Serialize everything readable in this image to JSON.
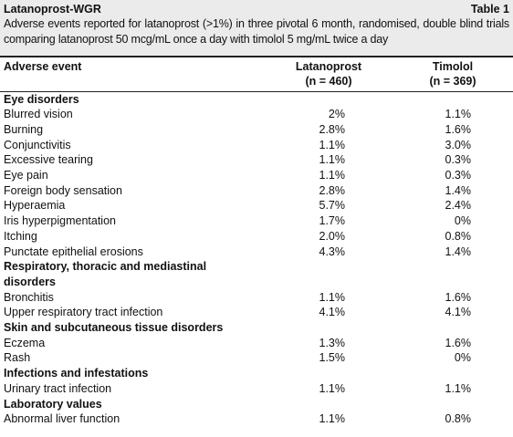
{
  "header": {
    "title": "Latanoprost-WGR",
    "table_label": "Table 1",
    "caption": "Adverse events reported for latanoprost (>1%) in three pivotal 6 month, randomised, double blind trials comparing latanoprost 50 mcg/mL once a day with timolol 5 mg/mL twice a day"
  },
  "table": {
    "columns": [
      {
        "label": "Adverse event"
      },
      {
        "label": "Latanoprost",
        "n": "(n = 460)"
      },
      {
        "label": "Timolol",
        "n": "(n = 369)"
      }
    ],
    "rows": [
      {
        "section": "Eye disorders"
      },
      {
        "cells": [
          "Blurred vision",
          "2%",
          "1.1%"
        ]
      },
      {
        "cells": [
          "Burning",
          "2.8%",
          "1.6%"
        ]
      },
      {
        "cells": [
          "Conjunctivitis",
          "1.1%",
          "3.0%"
        ]
      },
      {
        "cells": [
          "Excessive tearing",
          "1.1%",
          "0.3%"
        ]
      },
      {
        "cells": [
          "Eye pain",
          "1.1%",
          "0.3%"
        ]
      },
      {
        "cells": [
          "Foreign body sensation",
          "2.8%",
          "1.4%"
        ]
      },
      {
        "cells": [
          "Hyperaemia",
          "5.7%",
          "2.4%"
        ]
      },
      {
        "cells": [
          "Iris hyperpigmentation",
          "1.7%",
          "0%"
        ]
      },
      {
        "cells": [
          "Itching",
          "2.0%",
          "0.8%"
        ]
      },
      {
        "cells": [
          "Punctate epithelial erosions",
          "4.3%",
          "1.4%"
        ]
      },
      {
        "section": "Respiratory, thoracic and mediastinal disorders"
      },
      {
        "cells": [
          "Bronchitis",
          "1.1%",
          "1.6%"
        ]
      },
      {
        "cells": [
          "Upper respiratory tract infection",
          "4.1%",
          "4.1%"
        ]
      },
      {
        "section": "Skin and subcutaneous tissue disorders"
      },
      {
        "cells": [
          "Eczema",
          "1.3%",
          "1.6%"
        ]
      },
      {
        "cells": [
          "Rash",
          "1.5%",
          "0%"
        ]
      },
      {
        "section": "Infections and infestations"
      },
      {
        "cells": [
          "Urinary tract infection",
          "1.1%",
          "1.1%"
        ]
      },
      {
        "section": "Laboratory values"
      },
      {
        "cells": [
          "Abnormal liver function",
          "1.1%",
          "0.8%"
        ]
      }
    ]
  }
}
